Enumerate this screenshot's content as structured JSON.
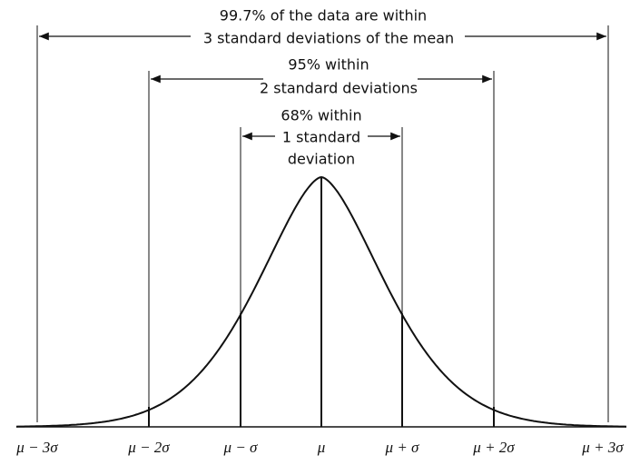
{
  "annotations": {
    "three_sigma": [
      "99.7% of the data are within",
      "3 standard deviations of the mean"
    ],
    "two_sigma": [
      "95% within",
      "2 standard deviations"
    ],
    "one_sigma": [
      "68% within",
      "1 standard",
      "deviation"
    ]
  },
  "x_labels": [
    "μ − 3σ",
    "μ − 2σ",
    "μ − σ",
    "μ",
    "μ + σ",
    "μ + 2σ",
    "μ + 3σ"
  ]
}
